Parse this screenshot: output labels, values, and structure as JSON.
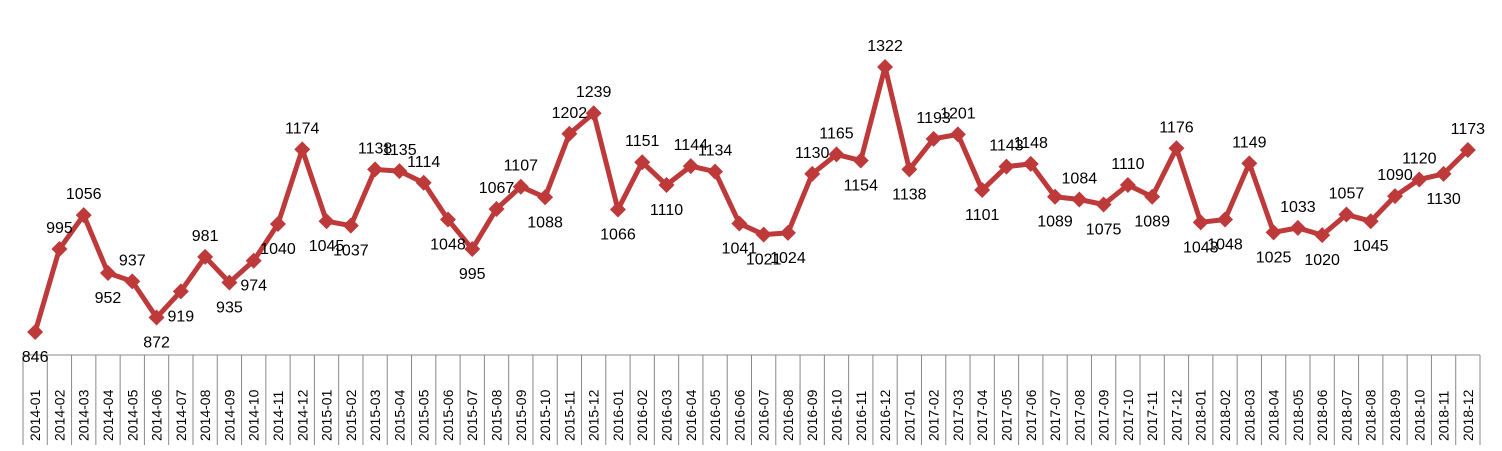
{
  "chart_data": {
    "type": "line",
    "categories": [
      "2014-01",
      "2014-02",
      "2014-03",
      "2014-04",
      "2014-05",
      "2014-06",
      "2014-07",
      "2014-08",
      "2014-09",
      "2014-10",
      "2014-11",
      "2014-12",
      "2015-01",
      "2015-02",
      "2015-03",
      "2015-04",
      "2015-05",
      "2015-06",
      "2015-07",
      "2015-08",
      "2015-09",
      "2015-10",
      "2015-11",
      "2015-12",
      "2016-01",
      "2016-02",
      "2016-03",
      "2016-04",
      "2016-05",
      "2016-06",
      "2016-07",
      "2016-08",
      "2016-09",
      "2016-10",
      "2016-11",
      "2016-12",
      "2017-01",
      "2017-02",
      "2017-03",
      "2017-04",
      "2017-05",
      "2017-06",
      "2017-07",
      "2017-08",
      "2017-09",
      "2017-10",
      "2017-11",
      "2017-12",
      "2018-01",
      "2018-02",
      "2018-03",
      "2018-04",
      "2018-05",
      "2018-06",
      "2018-07",
      "2018-08",
      "2018-09",
      "2018-10",
      "2018-11",
      "2018-12"
    ],
    "series": [
      {
        "color": "#be3a3a",
        "values": [
          846,
          995,
          1056,
          952,
          937,
          872,
          919,
          981,
          935,
          974,
          1040,
          1174,
          1045,
          1037,
          1138,
          1135,
          1114,
          1048,
          995,
          1067,
          1107,
          1088,
          1202,
          1239,
          1066,
          1151,
          1110,
          1144,
          1134,
          1041,
          1021,
          1024,
          1130,
          1165,
          1154,
          1322,
          1138,
          1193,
          1201,
          1101,
          1143,
          1148,
          1089,
          1084,
          1075,
          1110,
          1089,
          1176,
          1043,
          1048,
          1149,
          1025,
          1033,
          1020,
          1057,
          1045,
          1090,
          1120,
          1130,
          1173
        ]
      }
    ]
  }
}
